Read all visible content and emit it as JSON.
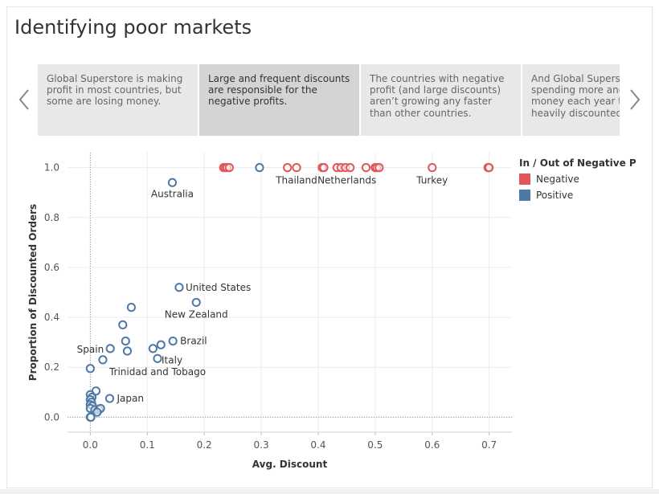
{
  "title": "Identifying poor markets",
  "story": [
    {
      "text": "Global Superstore is making profit in most countries, but some are losing money.",
      "active": false
    },
    {
      "text": "Large and frequent discounts are responsible for the negative profits.",
      "active": true
    },
    {
      "text": "The countries with negative profit (and large discounts) aren’t growing any faster than other countries.",
      "active": false
    },
    {
      "text": "And Global Superstore is spending more and more money each year to the heavily discounted countries.",
      "active": false
    }
  ],
  "legend": {
    "title": "In / Out of Negative Pro...",
    "items": [
      {
        "label": "Negative",
        "color": "#e15759"
      },
      {
        "label": "Positive",
        "color": "#4e79a7"
      }
    ]
  },
  "chart_data": {
    "type": "scatter",
    "xlabel": "Avg. Discount",
    "ylabel": "Proportion of Discounted Orders",
    "xlim": [
      -0.04,
      0.74
    ],
    "ylim": [
      -0.06,
      1.06
    ],
    "xticks": [
      "0.0",
      "0.1",
      "0.2",
      "0.3",
      "0.4",
      "0.5",
      "0.6",
      "0.7"
    ],
    "xtick_values": [
      0,
      0.1,
      0.2,
      0.3,
      0.4,
      0.5,
      0.6,
      0.7
    ],
    "yticks": [
      "0.0",
      "0.2",
      "0.4",
      "0.6",
      "0.8",
      "1.0"
    ],
    "ytick_values": [
      0,
      0.2,
      0.4,
      0.6,
      0.8,
      1.0
    ],
    "grid": true,
    "legend_position": "right",
    "series": [
      {
        "name": "Negative",
        "color": "#e15759",
        "points": [
          [
            0.234,
            1.0
          ],
          [
            0.237,
            1.0
          ],
          [
            0.24,
            1.0
          ],
          [
            0.244,
            1.0
          ],
          [
            0.346,
            1.0
          ],
          [
            0.362,
            1.0
          ],
          [
            0.407,
            1.0
          ],
          [
            0.41,
            1.0
          ],
          [
            0.433,
            1.0
          ],
          [
            0.44,
            1.0
          ],
          [
            0.448,
            1.0
          ],
          [
            0.456,
            1.0
          ],
          [
            0.484,
            1.0
          ],
          [
            0.5,
            1.0
          ],
          [
            0.503,
            1.0
          ],
          [
            0.507,
            1.0
          ],
          [
            0.6,
            1.0
          ],
          [
            0.698,
            1.0
          ],
          [
            0.7,
            1.0
          ]
        ]
      },
      {
        "name": "Positive",
        "color": "#4e79a7",
        "points": [
          [
            0.297,
            1.0
          ],
          [
            0.144,
            0.94
          ],
          [
            0.156,
            0.52
          ],
          [
            0.186,
            0.46
          ],
          [
            0.072,
            0.44
          ],
          [
            0.057,
            0.37
          ],
          [
            0.062,
            0.305
          ],
          [
            0.065,
            0.265
          ],
          [
            0.145,
            0.305
          ],
          [
            0.124,
            0.29
          ],
          [
            0.11,
            0.275
          ],
          [
            0.118,
            0.235
          ],
          [
            0.035,
            0.275
          ],
          [
            0.022,
            0.23
          ],
          [
            0.0,
            0.195
          ],
          [
            0.034,
            0.075
          ],
          [
            0.01,
            0.105
          ],
          [
            0.0,
            0.09
          ],
          [
            0.003,
            0.08
          ],
          [
            0.0,
            0.07
          ],
          [
            0.002,
            0.06
          ],
          [
            0.0,
            0.05
          ],
          [
            0.004,
            0.045
          ],
          [
            0.0,
            0.035
          ],
          [
            0.008,
            0.03
          ],
          [
            0.015,
            0.03
          ],
          [
            0.018,
            0.035
          ],
          [
            0.012,
            0.02
          ],
          [
            0.0,
            0.0
          ],
          [
            0.001,
            0.0
          ]
        ]
      }
    ],
    "annotations": [
      {
        "text": "Thailand",
        "x": 0.362,
        "y": 1.0
      },
      {
        "text": "Netherlands",
        "x": 0.456,
        "y": 1.0
      },
      {
        "text": "Turkey",
        "x": 0.6,
        "y": 1.0
      },
      {
        "text": "Australia",
        "x": 0.144,
        "y": 0.94
      },
      {
        "text": "United States",
        "x": 0.156,
        "y": 0.52
      },
      {
        "text": "New Zealand",
        "x": 0.186,
        "y": 0.46
      },
      {
        "text": "Brazil",
        "x": 0.145,
        "y": 0.305
      },
      {
        "text": "Spain",
        "x": 0.035,
        "y": 0.275
      },
      {
        "text": "Italy",
        "x": 0.118,
        "y": 0.235
      },
      {
        "text": "Trinidad and Tobago",
        "x": 0.022,
        "y": 0.23
      },
      {
        "text": "Japan",
        "x": 0.034,
        "y": 0.075
      }
    ]
  }
}
